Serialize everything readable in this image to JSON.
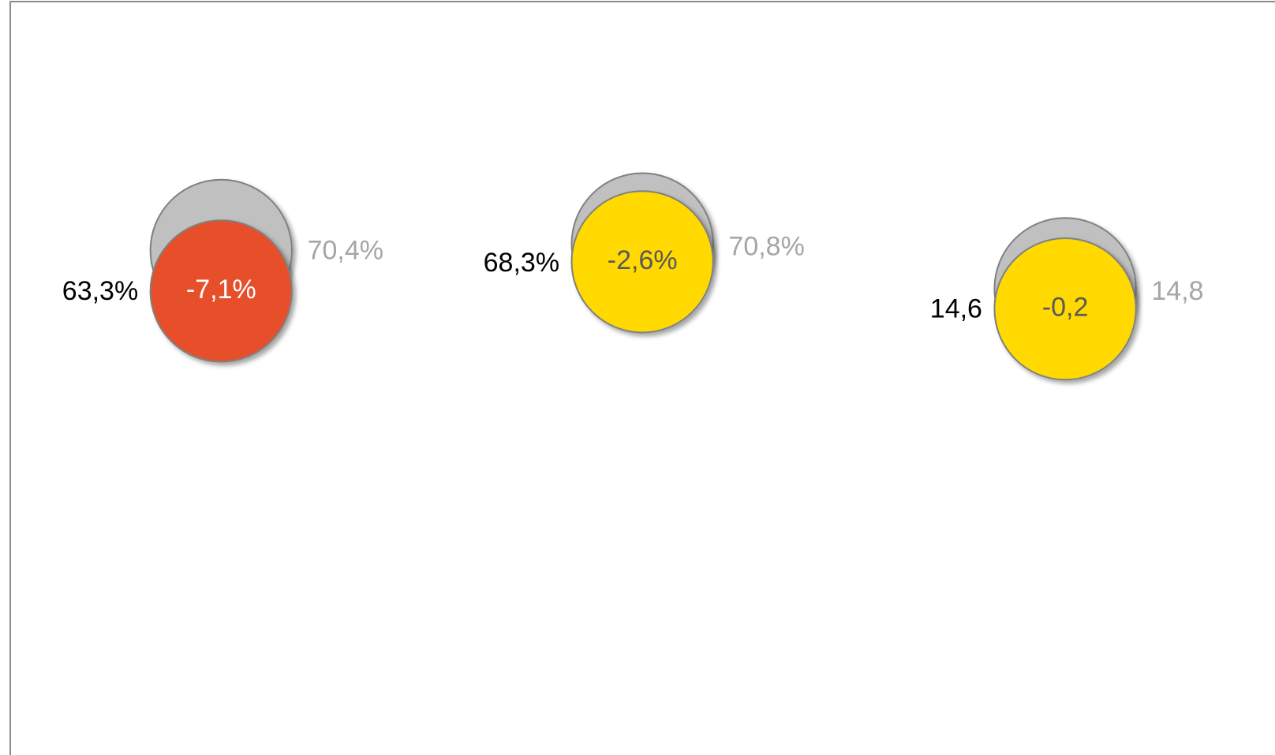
{
  "chart_data": {
    "type": "comparison-bubbles",
    "current": [
      63.3,
      68.3,
      14.6
    ],
    "current_labels": [
      "63,3%",
      "68,3%",
      "14,6"
    ],
    "previous": [
      70.4,
      70.8,
      14.8
    ],
    "previous_labels": [
      "70,4%",
      "70,8%",
      "14,8"
    ],
    "change": [
      -7.1,
      -2.6,
      -0.2
    ],
    "change_labels": [
      "-7,1%",
      "-2,6%",
      "-0,2"
    ],
    "colors": [
      "#e6502b",
      "#ffd900",
      "#ffd900"
    ],
    "change_label_colors": [
      "#ffffff",
      "#595959",
      "#595959"
    ],
    "previous_color": "#c0c0c0",
    "current_label_color": "#000000",
    "previous_label_color": "#a6a6a6"
  }
}
